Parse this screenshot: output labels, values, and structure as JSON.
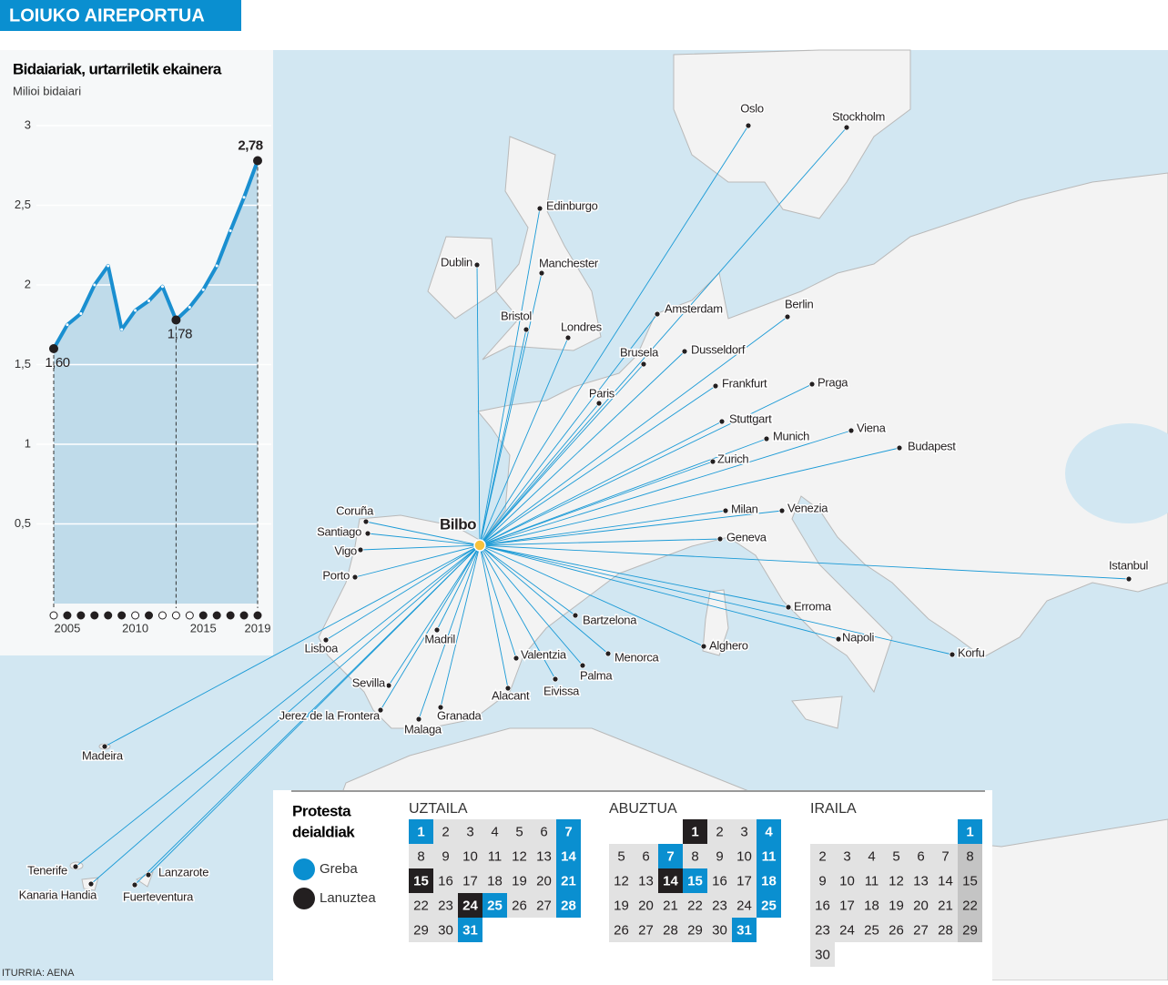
{
  "header": {
    "title": "LOIUKO AIREPORTUA"
  },
  "chart_data": {
    "type": "line",
    "title": "Bidaiariak, urtarriletik ekainera",
    "subtitle": "Milioi bidaiari",
    "x": [
      2004,
      2005,
      2006,
      2007,
      2008,
      2009,
      2010,
      2011,
      2012,
      2013,
      2014,
      2015,
      2016,
      2017,
      2018,
      2019
    ],
    "series": [
      {
        "name": null,
        "color": "#1a8fd0",
        "values": [
          1.6,
          1.75,
          1.82,
          2.0,
          2.12,
          1.72,
          1.84,
          1.9,
          1.99,
          1.78,
          1.86,
          1.97,
          2.12,
          2.34,
          2.55,
          2.78
        ],
        "value_labels": [
          "1,60",
          null,
          null,
          null,
          null,
          null,
          null,
          null,
          null,
          "1,78",
          null,
          null,
          null,
          null,
          null,
          "2,78"
        ]
      }
    ],
    "markers": [
      "open",
      "filled",
      "filled",
      "filled",
      "filled",
      "filled",
      "open",
      "filled",
      "open",
      "open",
      "open",
      "filled",
      "filled",
      "filled",
      "filled",
      "filled"
    ],
    "xlim": [
      2004,
      2019
    ],
    "xticks": [
      2005,
      2010,
      2015,
      2019
    ],
    "ylim": [
      0,
      3
    ],
    "yticks": [
      {
        "value": 0.5,
        "label": "0,5"
      },
      1,
      {
        "value": 1.5,
        "label": "1,5"
      },
      2,
      {
        "value": 2.5,
        "label": "2,5"
      },
      3
    ],
    "grid": true,
    "area_color": "#b5d6e8"
  },
  "map": {
    "hub": "Bilbo",
    "route_color": "#1a9ad6",
    "cities": [
      "Oslo",
      "Stockholm",
      "Edinburgo",
      "Dublin",
      "Manchester",
      "Bristol",
      "Londres",
      "Amsterdam",
      "Berlin",
      "Brusela",
      "Dusseldorf",
      "Paris",
      "Frankfurt",
      "Praga",
      "Stuttgart",
      "Munich",
      "Viena",
      "Budapest",
      "Zurich",
      "Milan",
      "Venezia",
      "Geneva",
      "Istanbul",
      "Erroma",
      "Bartzelona",
      "Napoli",
      "Korfu",
      "Alghero",
      "Menorca",
      "Valentzia",
      "Palma",
      "Eivissa",
      "Alacant",
      "Madril",
      "Lisboa",
      "Sevilla",
      "Jerez de la Frontera",
      "Granada",
      "Malaga",
      "Madeira",
      "Tenerife",
      "Kanaria Handia",
      "Lanzarote",
      "Fuerteventura",
      "Coruña",
      "Santiago",
      "Vigo",
      "Porto"
    ]
  },
  "calendar": {
    "title": [
      "Protesta",
      "deialdiak"
    ],
    "legend": {
      "strike": "Greba",
      "stoppage": "Lanuztea"
    },
    "months": [
      {
        "name": "UZTAILA",
        "first_weekday": 0,
        "days": [
          1,
          2,
          3,
          4,
          5,
          6,
          7,
          8,
          9,
          10,
          11,
          12,
          13,
          14,
          15,
          16,
          17,
          18,
          19,
          20,
          21,
          22,
          23,
          24,
          25,
          26,
          27,
          28,
          29,
          30,
          31
        ],
        "strike": [
          1,
          7,
          14,
          21,
          25,
          28,
          31
        ],
        "stoppage": [
          15,
          24
        ]
      },
      {
        "name": "ABUZTUA",
        "first_weekday": 3,
        "days": [
          1,
          2,
          3,
          4,
          5,
          6,
          7,
          8,
          9,
          10,
          11,
          12,
          13,
          14,
          15,
          16,
          17,
          18,
          19,
          20,
          21,
          22,
          23,
          24,
          25,
          26,
          27,
          28,
          29,
          30,
          31
        ],
        "strike": [
          4,
          7,
          11,
          15,
          18,
          25,
          31
        ],
        "stoppage": [
          1,
          14
        ]
      },
      {
        "name": "IRAILA",
        "first_weekday": 6,
        "shade_sunday": true,
        "days": [
          1,
          2,
          3,
          4,
          5,
          6,
          7,
          8,
          9,
          10,
          11,
          12,
          13,
          14,
          15,
          16,
          17,
          18,
          19,
          20,
          21,
          22,
          23,
          24,
          25,
          26,
          27,
          28,
          29,
          30
        ],
        "strike": [
          1
        ],
        "stoppage": []
      }
    ]
  },
  "source": "ITURRIA: AENA"
}
